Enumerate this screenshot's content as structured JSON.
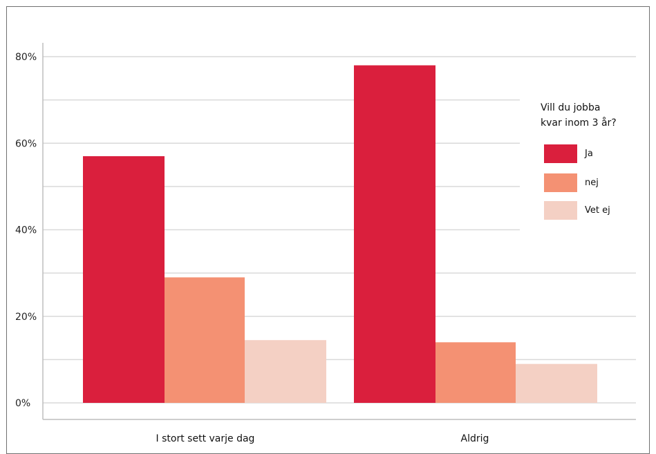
{
  "chart_data": {
    "type": "bar",
    "categories": [
      "I stort sett varje dag",
      "Aldrig"
    ],
    "series": [
      {
        "name": "Ja",
        "values": [
          57,
          78
        ],
        "color": "#da1f3d"
      },
      {
        "name": "nej",
        "values": [
          29,
          14
        ],
        "color": "#f49173"
      },
      {
        "name": "Vet ej",
        "values": [
          14.5,
          9
        ],
        "color": "#f4d0c4"
      }
    ],
    "y_ticks": [
      "0%",
      "20%",
      "40%",
      "60%",
      "80%"
    ],
    "ylim": [
      0,
      80
    ],
    "legend": {
      "title_lines": [
        "Vill du jobba",
        "kvar inom 3 år?"
      ],
      "placement": "right"
    },
    "grid": true
  }
}
